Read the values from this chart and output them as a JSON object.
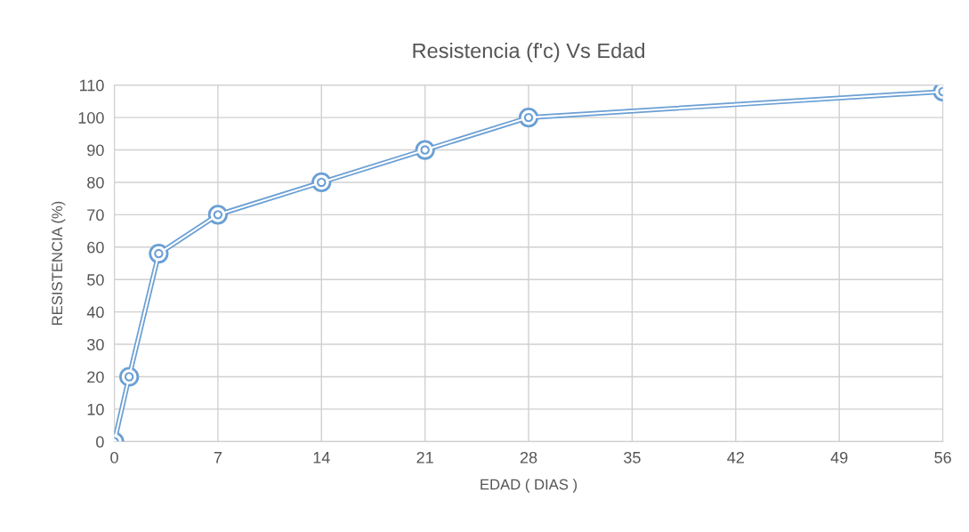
{
  "chart_data": {
    "type": "line",
    "title": "Resistencia (f'c) Vs Edad",
    "xlabel": "EDAD ( DIAS )",
    "ylabel": "RESISTENCIA (%)",
    "x": [
      0,
      1,
      3,
      7,
      14,
      21,
      28,
      56
    ],
    "series": [
      {
        "color": "#6a9fd4",
        "values": [
          0,
          20,
          58,
          70,
          80,
          90,
          100,
          108
        ]
      }
    ],
    "xlim": [
      0,
      56
    ],
    "xticks": [
      0,
      7,
      14,
      21,
      28,
      35,
      42,
      49,
      56
    ],
    "ylim": [
      0,
      110
    ],
    "yticks": [
      0,
      10,
      20,
      30,
      40,
      50,
      60,
      70,
      80,
      90,
      100,
      110
    ],
    "grid": true,
    "marker": "circle",
    "line_style": "solid",
    "legend": false
  }
}
